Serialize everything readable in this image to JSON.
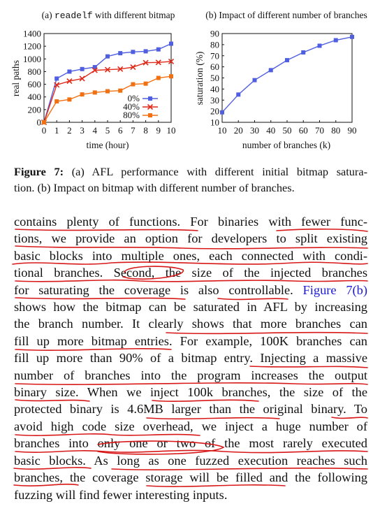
{
  "figure": {
    "left_panel": {
      "title_prefix": "(a) ",
      "title_code": "readelf",
      "title_suffix": " with different bitmap",
      "xlabel": "time (hour)",
      "ylabel": "real paths",
      "legend": [
        "0%",
        "40%",
        "80%"
      ]
    },
    "right_panel": {
      "title": "(b) Impact of different number of branches",
      "xlabel": "number of branches (k)",
      "ylabel": "saturation (%)"
    },
    "caption": {
      "label": "Figure 7:",
      "line1_rest": " (a) AFL performance with different initial bitmap satura-",
      "line2": "tion. (b) Impact on bitmap with different number of branches."
    }
  },
  "colors": {
    "s0": "#4f5fe0",
    "s40": "#e02a1a",
    "s80": "#f07012",
    "saturation": "#4f5fe0",
    "ink": "#d81818",
    "link": "#1a1ad6"
  },
  "chart_data": [
    {
      "type": "line",
      "title": "(a) readelf with different bitmap",
      "xlabel": "time (hour)",
      "ylabel": "real paths",
      "xlim": [
        0,
        10
      ],
      "ylim": [
        0,
        1400
      ],
      "x": [
        0,
        1,
        2,
        3,
        4,
        5,
        6,
        7,
        8,
        9,
        10
      ],
      "xticks": [
        0,
        1,
        2,
        3,
        4,
        5,
        6,
        7,
        8,
        9,
        10
      ],
      "yticks": [
        0,
        200,
        400,
        600,
        800,
        1000,
        1200,
        1400
      ],
      "legend_position": "bottom-right",
      "series": [
        {
          "name": "0%",
          "marker": "square",
          "values": [
            0,
            690,
            800,
            840,
            870,
            1040,
            1090,
            1110,
            1120,
            1150,
            1240
          ]
        },
        {
          "name": "40%",
          "marker": "x",
          "values": [
            0,
            590,
            650,
            690,
            820,
            830,
            840,
            870,
            940,
            945,
            960
          ]
        },
        {
          "name": "80%",
          "marker": "filled-square",
          "values": [
            0,
            330,
            360,
            440,
            470,
            490,
            500,
            600,
            610,
            700,
            725
          ]
        }
      ]
    },
    {
      "type": "line",
      "title": "(b) Impact of different number of branches",
      "xlabel": "number of branches (k)",
      "ylabel": "saturation (%)",
      "xlim": [
        10,
        90
      ],
      "ylim": [
        10,
        90
      ],
      "xticks": [
        10,
        20,
        30,
        40,
        50,
        60,
        70,
        80,
        90
      ],
      "yticks": [
        10,
        20,
        30,
        40,
        50,
        60,
        70,
        80,
        90
      ],
      "series": [
        {
          "marker": "square",
          "x": [
            10,
            20,
            30,
            40,
            50,
            60,
            70,
            80,
            90
          ],
          "values": [
            19,
            35,
            48,
            57,
            66,
            73,
            79,
            84,
            87
          ]
        }
      ]
    }
  ],
  "body": {
    "lines": [
      "contains plenty of functions. For binaries with fewer func-",
      "tions, we provide an option for developers to split existing",
      "basic blocks into multiple ones, each connected with condi-",
      [
        "tional branches. Second, the size of the injected branches"
      ],
      "for saturating the coverage is also controllable.",
      "shows how the bitmap can be saturated in AFL by increasing",
      "the branch number. It clearly shows that more branches can",
      "fill up more bitmap entries. For example, 100K branches can",
      "fill up more than 90% of a bitmap entry. Injecting a massive",
      "number of branches into the program increases the output",
      "binary size. When we inject 100k branches, the size of the",
      "protected binary is 4.6MB larger than the original binary. To",
      "avoid high code size overhead, we inject a huge number of",
      "branches into only one or two of the most rarely executed",
      "basic blocks. As long as one fuzzed execution reaches such",
      "branches, the coverage storage will be filled and the following",
      "fuzzing will find fewer interesting inputs."
    ],
    "figure_ref": "Figure 7(b)"
  }
}
